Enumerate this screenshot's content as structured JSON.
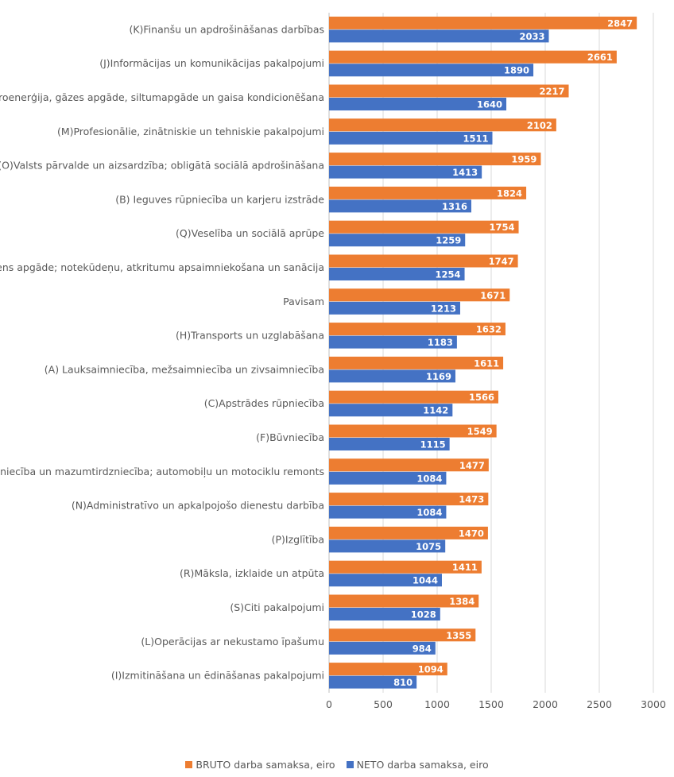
{
  "chart_data": {
    "type": "bar",
    "orientation": "horizontal",
    "categories": [
      "(K)Finanšu un apdrošināšanas darbības",
      "(J)Informācijas un komunikācijas pakalpojumi",
      "(D)Elektroenerģija, gāzes apgāde, siltumapgāde un gaisa kondicionēšana",
      "(M)Profesionālie, zinātniskie un tehniskie pakalpojumi",
      "(O)Valsts pārvalde un aizsardzība; obligātā sociālā apdrošināšana",
      "(B) Ieguves rūpniecība un karjeru izstrāde",
      "(Q)Veselība un sociālā aprūpe",
      "(E)Ūdens apgāde; notekūdeņu, atkritumu apsaimniekošana un sanācija",
      "Pavisam",
      "(H)Transports un uzglabāšana",
      "(A) Lauksaimniecība, mežsaimniecība un zivsaimniecība",
      "(C)Apstrādes rūpniecība",
      "(F)Būvniecība",
      "(G)Vairumtirdzniecība un mazumtirdzniecība; automobiļu un motociklu remonts",
      "(N)Administratīvo un apkalpojošo dienestu darbība",
      "(P)Izglītība",
      "(R)Māksla, izklaide un atpūta",
      "(S)Citi pakalpojumi",
      "(L)Operācijas ar nekustamo īpašumu",
      "(I)Izmitināšana un ēdināšanas pakalpojumi"
    ],
    "series": [
      {
        "name": "BRUTO darba samaksa, eiro",
        "color": "#ED7D31",
        "values": [
          2847,
          2661,
          2217,
          2102,
          1959,
          1824,
          1754,
          1747,
          1671,
          1632,
          1611,
          1566,
          1549,
          1477,
          1473,
          1470,
          1411,
          1384,
          1355,
          1094
        ]
      },
      {
        "name": "NETO darba samaksa, eiro",
        "color": "#4472C4",
        "values": [
          2033,
          1890,
          1640,
          1511,
          1413,
          1316,
          1259,
          1254,
          1213,
          1183,
          1169,
          1142,
          1115,
          1084,
          1084,
          1075,
          1044,
          1028,
          984,
          810
        ]
      }
    ],
    "xlim": [
      0,
      3000
    ],
    "xticks": [
      "0",
      "500",
      "1000",
      "1500",
      "2000",
      "2500",
      "3000"
    ],
    "xtick_values": [
      0,
      500,
      1000,
      1500,
      2000,
      2500,
      3000
    ],
    "grid": true,
    "legend_position": "bottom",
    "data_labels": true,
    "title": "",
    "xlabel": "",
    "ylabel": ""
  }
}
